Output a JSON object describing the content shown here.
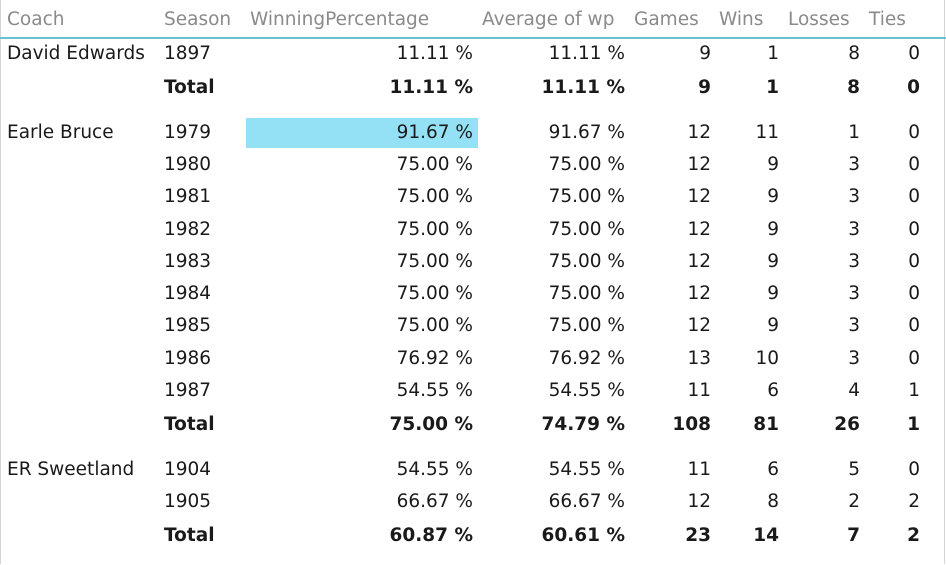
{
  "chart_data": {
    "type": "table",
    "columns": [
      "Coach",
      "Season",
      "WinningPercentage",
      "Average of wp",
      "Games",
      "Wins",
      "Losses",
      "Ties"
    ],
    "highlight_color": "#94e1f5",
    "header_line_color": "#68c2cf",
    "groups": [
      {
        "coach": "David Edwards",
        "rows": [
          {
            "season": "1897",
            "winning_percentage": "11.11 %",
            "average_wp": "11.11 %",
            "games": "9",
            "wins": "1",
            "losses": "8",
            "ties": "0"
          }
        ],
        "total": {
          "label": "Total",
          "winning_percentage": "11.11 %",
          "average_wp": "11.11 %",
          "games": "9",
          "wins": "1",
          "losses": "8",
          "ties": "0"
        }
      },
      {
        "coach": "Earle Bruce",
        "rows": [
          {
            "season": "1979",
            "winning_percentage": "91.67 %",
            "average_wp": "91.67 %",
            "games": "12",
            "wins": "11",
            "losses": "1",
            "ties": "0",
            "highlighted": true
          },
          {
            "season": "1980",
            "winning_percentage": "75.00 %",
            "average_wp": "75.00 %",
            "games": "12",
            "wins": "9",
            "losses": "3",
            "ties": "0"
          },
          {
            "season": "1981",
            "winning_percentage": "75.00 %",
            "average_wp": "75.00 %",
            "games": "12",
            "wins": "9",
            "losses": "3",
            "ties": "0"
          },
          {
            "season": "1982",
            "winning_percentage": "75.00 %",
            "average_wp": "75.00 %",
            "games": "12",
            "wins": "9",
            "losses": "3",
            "ties": "0"
          },
          {
            "season": "1983",
            "winning_percentage": "75.00 %",
            "average_wp": "75.00 %",
            "games": "12",
            "wins": "9",
            "losses": "3",
            "ties": "0"
          },
          {
            "season": "1984",
            "winning_percentage": "75.00 %",
            "average_wp": "75.00 %",
            "games": "12",
            "wins": "9",
            "losses": "3",
            "ties": "0"
          },
          {
            "season": "1985",
            "winning_percentage": "75.00 %",
            "average_wp": "75.00 %",
            "games": "12",
            "wins": "9",
            "losses": "3",
            "ties": "0"
          },
          {
            "season": "1986",
            "winning_percentage": "76.92 %",
            "average_wp": "76.92 %",
            "games": "13",
            "wins": "10",
            "losses": "3",
            "ties": "0"
          },
          {
            "season": "1987",
            "winning_percentage": "54.55 %",
            "average_wp": "54.55 %",
            "games": "11",
            "wins": "6",
            "losses": "4",
            "ties": "1"
          }
        ],
        "total": {
          "label": "Total",
          "winning_percentage": "75.00 %",
          "average_wp": "74.79 %",
          "games": "108",
          "wins": "81",
          "losses": "26",
          "ties": "1"
        }
      },
      {
        "coach": "ER Sweetland",
        "rows": [
          {
            "season": "1904",
            "winning_percentage": "54.55 %",
            "average_wp": "54.55 %",
            "games": "11",
            "wins": "6",
            "losses": "5",
            "ties": "0"
          },
          {
            "season": "1905",
            "winning_percentage": "66.67 %",
            "average_wp": "66.67 %",
            "games": "12",
            "wins": "8",
            "losses": "2",
            "ties": "2"
          }
        ],
        "total": {
          "label": "Total",
          "winning_percentage": "60.87 %",
          "average_wp": "60.61 %",
          "games": "23",
          "wins": "14",
          "losses": "7",
          "ties": "2"
        }
      }
    ]
  }
}
